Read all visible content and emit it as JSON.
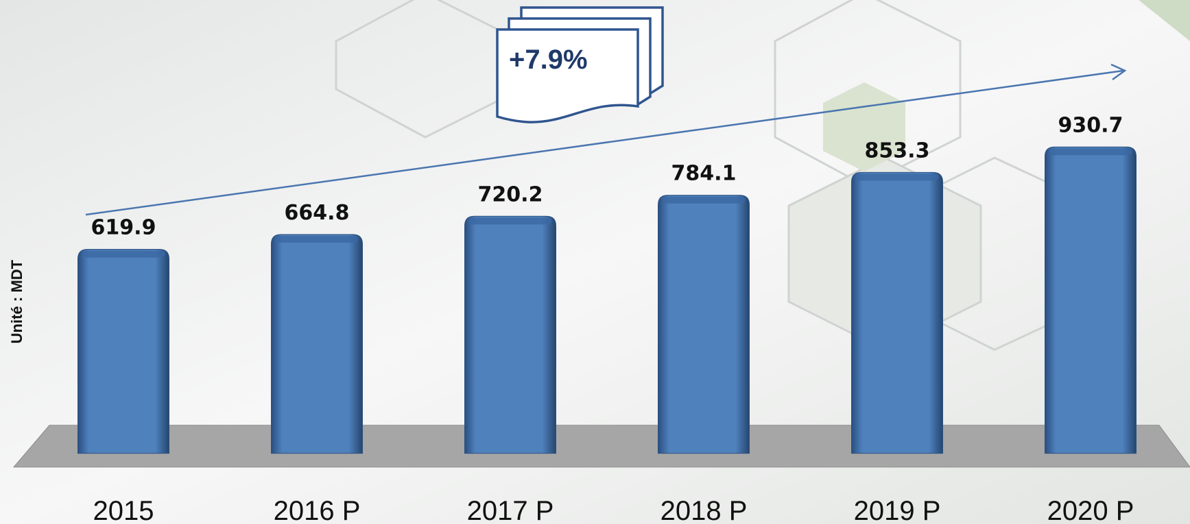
{
  "chart_data": {
    "type": "bar",
    "y_label": "Unité :  MDT",
    "annotation": "+7.9%",
    "categories": [
      "2015",
      "2016 P",
      "2017 P",
      "2018 P",
      "2019 P",
      "2020 P"
    ],
    "values": [
      619.9,
      664.8,
      720.2,
      784.1,
      853.3,
      930.7
    ],
    "color": "#4f81bd"
  }
}
